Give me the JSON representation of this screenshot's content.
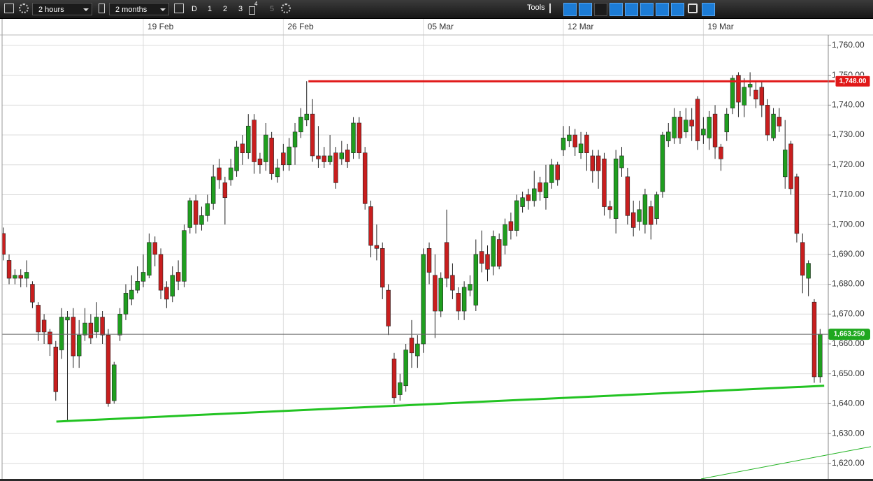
{
  "toolbar": {
    "interval": "2 hours",
    "range": "2 months",
    "buttons": [
      "D",
      "1",
      "2",
      "3"
    ],
    "badge": "4",
    "disabled": "5",
    "tools": "Tools"
  },
  "chart_data": {
    "type": "candlestick",
    "xlim": [
      -0.2,
      141.4
    ],
    "ylim": [
      1614.8,
      1763.5
    ],
    "xticks": [
      {
        "value": 24,
        "label": "19 Feb"
      },
      {
        "value": 48,
        "label": "26 Feb"
      },
      {
        "value": 72,
        "label": "05 Mar"
      },
      {
        "value": 96,
        "label": "12 Mar"
      },
      {
        "value": 120,
        "label": "19 Mar"
      }
    ],
    "yticks": [
      {
        "value": 1620,
        "label": "1,620.00"
      },
      {
        "value": 1630,
        "label": "1,630.00"
      },
      {
        "value": 1640,
        "label": "1,640.00"
      },
      {
        "value": 1650,
        "label": "1,650.00"
      },
      {
        "value": 1660,
        "label": "1,660.00"
      },
      {
        "value": 1670,
        "label": "1,670.00"
      },
      {
        "value": 1680,
        "label": "1,680.00"
      },
      {
        "value": 1690,
        "label": "1,690.00"
      },
      {
        "value": 1700,
        "label": "1,700.00"
      },
      {
        "value": 1710,
        "label": "1,710.00"
      },
      {
        "value": 1720,
        "label": "1,720.00"
      },
      {
        "value": 1730,
        "label": "1,730.00"
      },
      {
        "value": 1740,
        "label": "1,740.00"
      },
      {
        "value": 1750,
        "label": "1,750.00"
      },
      {
        "value": 1760,
        "label": "1,760.00"
      }
    ],
    "grid": true,
    "up_color": "#1f9e1f",
    "down_color": "#c81e1e",
    "open": [
      1697,
      1688,
      1682,
      1683,
      1682,
      1680,
      1673,
      1668,
      1664,
      1659,
      1658,
      1668,
      1669,
      1656,
      1663,
      1667,
      1664,
      1669,
      1663,
      1641,
      1663,
      1670,
      1675,
      1678,
      1681,
      1683,
      1694,
      1690,
      1679,
      1676,
      1684,
      1681,
      1699,
      1708,
      1700,
      1703,
      1707,
      1719,
      1714,
      1715,
      1718,
      1727,
      1724,
      1735,
      1722,
      1721,
      1729,
      1716,
      1724,
      1720,
      1726,
      1731,
      1735,
      1737,
      1723,
      1723,
      1721,
      1724,
      1722,
      1725,
      1724,
      1734,
      1724,
      1706,
      1693,
      1692,
      1678,
      1655,
      1643,
      1646,
      1662,
      1656,
      1660,
      1692,
      1683,
      1671,
      1694,
      1683,
      1677,
      1671,
      1678,
      1673,
      1691,
      1690,
      1686,
      1695,
      1693,
      1701,
      1698,
      1706,
      1710,
      1708,
      1714,
      1709,
      1714,
      1720,
      1725,
      1728,
      1730,
      1724,
      1730,
      1723,
      1723,
      1722,
      1706,
      1702,
      1719,
      1716,
      1704,
      1701,
      1700,
      1706,
      1702,
      1711,
      1728,
      1729,
      1736,
      1731,
      1735,
      1742,
      1730,
      1729,
      1737,
      1726,
      1731,
      1739,
      1750,
      1740,
      1746,
      1745,
      1746,
      1740,
      1729,
      1736,
      1716,
      1727,
      1716,
      1694,
      1682,
      1674,
      1649
    ],
    "high": [
      1699,
      1690,
      1685,
      1685,
      1688,
      1681,
      1674,
      1670,
      1665,
      1661,
      1672,
      1671,
      1672,
      1668,
      1672,
      1670,
      1674,
      1671,
      1665,
      1654,
      1672,
      1680,
      1683,
      1686,
      1690,
      1697,
      1696,
      1692,
      1681,
      1686,
      1688,
      1700,
      1709,
      1710,
      1706,
      1710,
      1720,
      1722,
      1716,
      1722,
      1728,
      1730,
      1737,
      1737,
      1724,
      1734,
      1731,
      1722,
      1727,
      1729,
      1734,
      1739,
      1748,
      1742,
      1733,
      1726,
      1730,
      1726,
      1728,
      1727,
      1736,
      1736,
      1726,
      1708,
      1700,
      1694,
      1680,
      1657,
      1650,
      1660,
      1668,
      1663,
      1692,
      1694,
      1690,
      1684,
      1705,
      1687,
      1679,
      1681,
      1683,
      1695,
      1698,
      1693,
      1698,
      1697,
      1702,
      1704,
      1710,
      1711,
      1712,
      1718,
      1716,
      1720,
      1722,
      1721,
      1733,
      1733,
      1732,
      1731,
      1731,
      1725,
      1725,
      1724,
      1708,
      1725,
      1726,
      1719,
      1708,
      1708,
      1712,
      1708,
      1711,
      1731,
      1734,
      1739,
      1738,
      1739,
      1739,
      1743,
      1736,
      1738,
      1740,
      1727,
      1739,
      1750,
      1751,
      1749,
      1751,
      1748,
      1748,
      1742,
      1739,
      1739,
      1735,
      1728,
      1717,
      1697,
      1688,
      1675,
      1665
    ],
    "low": [
      1688,
      1680,
      1680,
      1679,
      1679,
      1672,
      1661,
      1660,
      1656,
      1641,
      1655,
      1634,
      1652,
      1652,
      1661,
      1660,
      1662,
      1660,
      1639,
      1640,
      1661,
      1668,
      1673,
      1677,
      1679,
      1682,
      1686,
      1675,
      1672,
      1674,
      1678,
      1679,
      1697,
      1697,
      1698,
      1701,
      1705,
      1712,
      1700,
      1713,
      1716,
      1720,
      1722,
      1717,
      1717,
      1718,
      1715,
      1714,
      1718,
      1718,
      1720,
      1729,
      1733,
      1721,
      1719,
      1719,
      1720,
      1712,
      1720,
      1719,
      1722,
      1722,
      1705,
      1689,
      1688,
      1675,
      1663,
      1640,
      1641,
      1644,
      1652,
      1652,
      1657,
      1680,
      1662,
      1669,
      1679,
      1675,
      1668,
      1668,
      1676,
      1671,
      1684,
      1681,
      1683,
      1685,
      1690,
      1695,
      1696,
      1704,
      1705,
      1706,
      1708,
      1705,
      1712,
      1713,
      1723,
      1726,
      1723,
      1722,
      1718,
      1714,
      1712,
      1703,
      1702,
      1697,
      1716,
      1700,
      1696,
      1698,
      1697,
      1695,
      1700,
      1709,
      1726,
      1727,
      1727,
      1729,
      1728,
      1725,
      1727,
      1725,
      1722,
      1718,
      1728,
      1737,
      1736,
      1736,
      1743,
      1739,
      1736,
      1728,
      1728,
      1731,
      1712,
      1710,
      1694,
      1677,
      1676,
      1647,
      1647
    ],
    "close": [
      1690,
      1682,
      1683,
      1682,
      1684,
      1674,
      1664,
      1664,
      1660,
      1644,
      1669,
      1669,
      1656,
      1663,
      1667,
      1662,
      1669,
      1663,
      1640,
      1653,
      1670,
      1677,
      1678,
      1681,
      1684,
      1694,
      1690,
      1678,
      1675,
      1683,
      1681,
      1698,
      1708,
      1700,
      1703,
      1707,
      1716,
      1715,
      1709,
      1719,
      1726,
      1724,
      1733,
      1721,
      1720,
      1730,
      1717,
      1719,
      1720,
      1726,
      1731,
      1736,
      1737,
      1723,
      1722,
      1721,
      1723,
      1714,
      1724,
      1721,
      1734,
      1724,
      1707,
      1693,
      1692,
      1679,
      1666,
      1642,
      1647,
      1658,
      1657,
      1660,
      1690,
      1684,
      1671,
      1682,
      1682,
      1678,
      1671,
      1679,
      1680,
      1690,
      1687,
      1685,
      1696,
      1686,
      1700,
      1698,
      1708,
      1709,
      1708,
      1712,
      1711,
      1714,
      1720,
      1715,
      1729,
      1730,
      1726,
      1727,
      1724,
      1718,
      1718,
      1706,
      1705,
      1722,
      1723,
      1703,
      1699,
      1705,
      1710,
      1700,
      1710,
      1730,
      1731,
      1736,
      1729,
      1735,
      1733,
      1728,
      1732,
      1736,
      1726,
      1722,
      1737,
      1749,
      1741,
      1746,
      1747,
      1742,
      1740,
      1730,
      1737,
      1733,
      1725,
      1712,
      1697,
      1683,
      1687,
      1649,
      1663.25
    ],
    "level": {
      "value": 1748,
      "label": "1,748.00",
      "x_start": 52.3,
      "color": "#e01818"
    },
    "price_line": {
      "value": 1663.25,
      "label": "1,663.250",
      "color": "#1fa81f"
    },
    "trendlines": [
      {
        "x": [
          9.1,
          140.7
        ],
        "y": [
          1634,
          1646
        ],
        "color": "#22c322",
        "width": 3
      },
      {
        "x": [
          119.6,
          148.7
        ],
        "y": [
          1614.8,
          1625.6
        ],
        "color": "#22b322",
        "width": 1
      }
    ]
  }
}
